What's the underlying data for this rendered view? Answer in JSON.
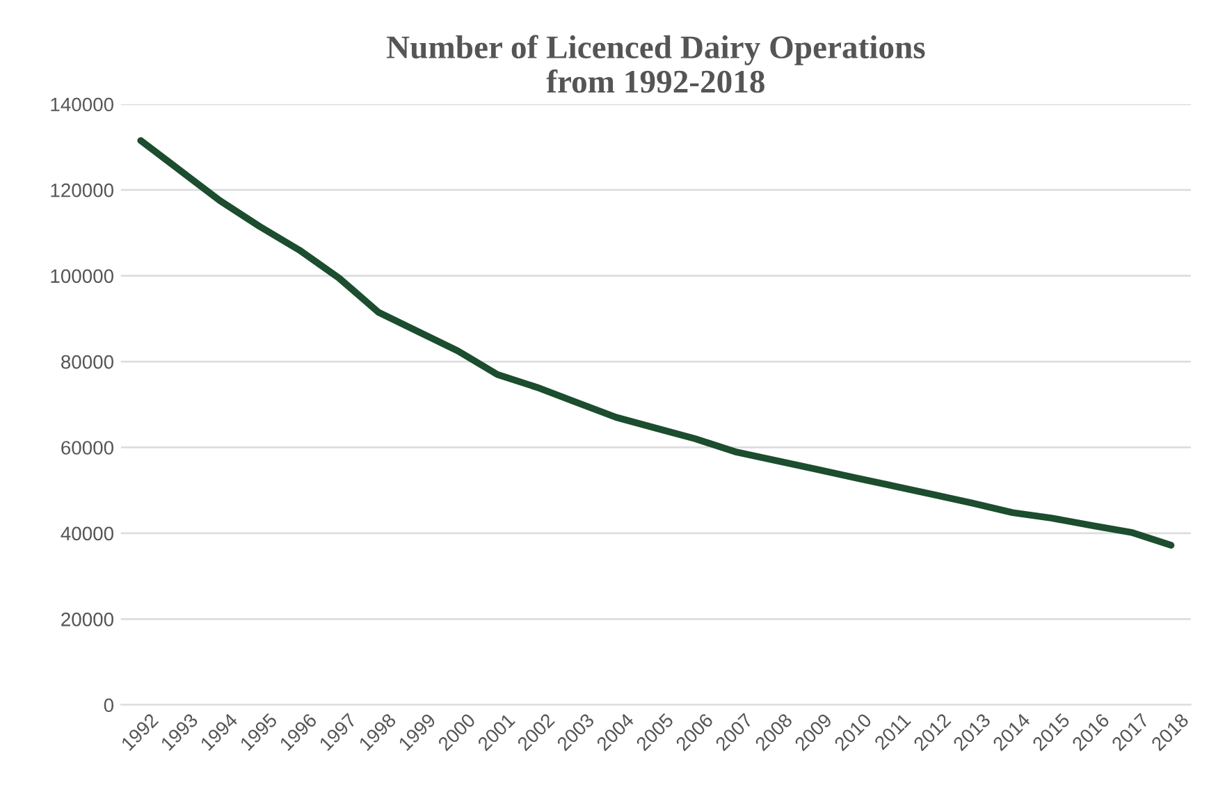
{
  "chart_data": {
    "type": "line",
    "title": "Number of Licenced Dairy Operations\nfrom 1992-2018",
    "categories": [
      "1992",
      "1993",
      "1994",
      "1995",
      "1996",
      "1997",
      "1998",
      "1999",
      "2000",
      "2001",
      "2002",
      "2003",
      "2004",
      "2005",
      "2006",
      "2007",
      "2008",
      "2009",
      "2010",
      "2011",
      "2012",
      "2013",
      "2014",
      "2015",
      "2016",
      "2017",
      "2018"
    ],
    "series": [
      {
        "color": "#1b4d2e",
        "values": [
          131500,
          124500,
          117500,
          111500,
          106000,
          99500,
          91500,
          87000,
          82500,
          77000,
          74000,
          70500,
          67000,
          64500,
          62000,
          59000,
          57000,
          55000,
          53000,
          51000,
          49000,
          47000,
          44800,
          43500,
          41800,
          40200,
          37200
        ]
      }
    ],
    "ylim": [
      0,
      140000
    ],
    "yticks": [
      0,
      20000,
      40000,
      60000,
      80000,
      100000,
      120000,
      140000
    ],
    "grid": "y",
    "legend": false,
    "marker": "none",
    "line_style": "solid"
  }
}
